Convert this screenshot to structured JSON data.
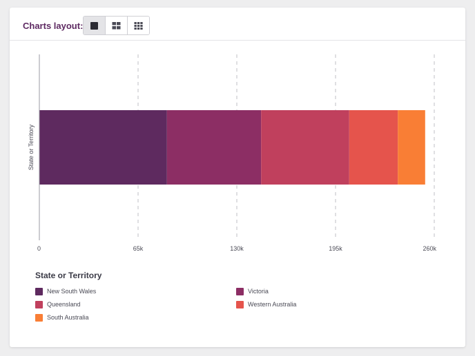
{
  "toolbar": {
    "label": "Charts layout:",
    "options": [
      {
        "icon": "single-square-icon",
        "active": true
      },
      {
        "icon": "grid-2x2-icon",
        "active": false
      },
      {
        "icon": "grid-3x3-icon",
        "active": false
      }
    ]
  },
  "chart_data": {
    "type": "bar",
    "orientation": "horizontal",
    "stacked": true,
    "categories": [
      ""
    ],
    "series": [
      {
        "name": "New South Wales",
        "values": [
          84000
        ],
        "color": "#5e2a5f"
      },
      {
        "name": "Victoria",
        "values": [
          62000
        ],
        "color": "#8c2e64"
      },
      {
        "name": "Queensland",
        "values": [
          58000
        ],
        "color": "#c0405d"
      },
      {
        "name": "Western Australia",
        "values": [
          32000
        ],
        "color": "#e5544c"
      },
      {
        "name": "South Australia",
        "values": [
          18000
        ],
        "color": "#f97e35"
      }
    ],
    "xlim": [
      0,
      260000
    ],
    "x_ticks": [
      "0",
      "65k",
      "130k",
      "195k",
      "260k"
    ],
    "ylabel": "State or Territory",
    "grid": "vertical dashed",
    "legend_title": "State or Territory",
    "legend_position": "bottom"
  }
}
